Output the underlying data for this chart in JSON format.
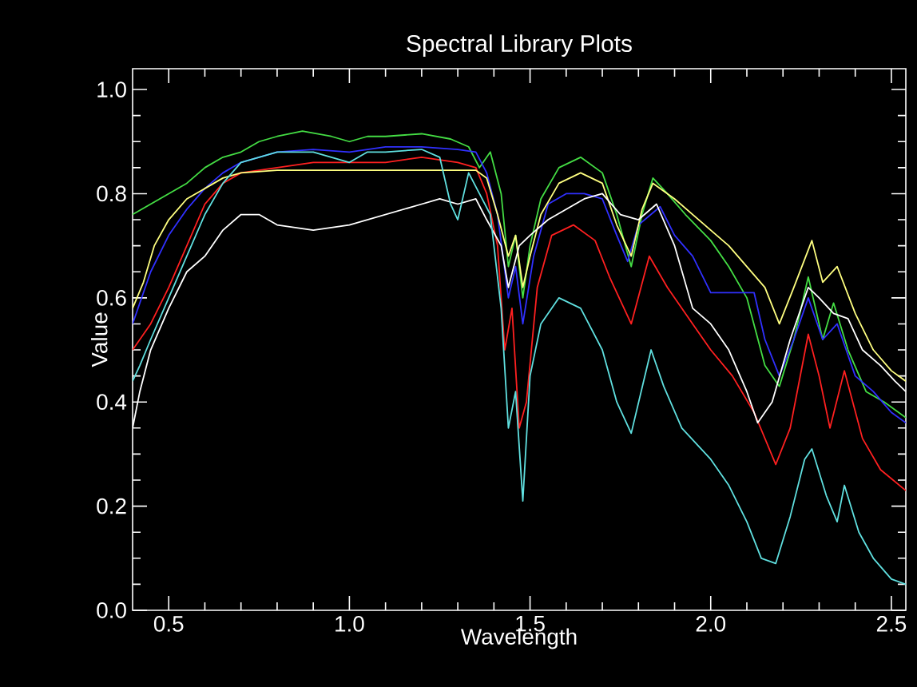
{
  "chart_data": {
    "type": "line",
    "title": "Spectral Library Plots",
    "xlabel": "Wavelength",
    "ylabel": "Value",
    "xlim": [
      0.4,
      2.54
    ],
    "ylim": [
      0,
      1.04
    ],
    "xticks": [
      {
        "value": 0.5,
        "label": "0.5"
      },
      {
        "value": 1.0,
        "label": "1.0"
      },
      {
        "value": 1.5,
        "label": "1.5"
      },
      {
        "value": 2.0,
        "label": "2.0"
      },
      {
        "value": 2.5,
        "label": "2.5"
      }
    ],
    "yticks": [
      {
        "value": 0.0,
        "label": "0.0"
      },
      {
        "value": 0.2,
        "label": "0.2"
      },
      {
        "value": 0.4,
        "label": "0.4"
      },
      {
        "value": 0.6,
        "label": "0.6"
      },
      {
        "value": 0.8,
        "label": "0.8"
      },
      {
        "value": 1.0,
        "label": "1.0"
      }
    ],
    "series": [
      {
        "color": "#44dd44",
        "x": [
          0.4,
          0.45,
          0.5,
          0.55,
          0.6,
          0.65,
          0.7,
          0.75,
          0.8,
          0.87,
          0.95,
          1.0,
          1.05,
          1.1,
          1.2,
          1.28,
          1.33,
          1.36,
          1.39,
          1.42,
          1.44,
          1.46,
          1.48,
          1.5,
          1.53,
          1.58,
          1.64,
          1.7,
          1.74,
          1.78,
          1.81,
          1.84,
          1.88,
          1.93,
          2.0,
          2.05,
          2.1,
          2.15,
          2.19,
          2.23,
          2.27,
          2.31,
          2.34,
          2.38,
          2.43,
          2.48,
          2.54
        ],
        "values": [
          0.76,
          0.78,
          0.8,
          0.82,
          0.85,
          0.87,
          0.88,
          0.9,
          0.91,
          0.92,
          0.91,
          0.9,
          0.91,
          0.91,
          0.915,
          0.905,
          0.89,
          0.85,
          0.88,
          0.8,
          0.66,
          0.72,
          0.6,
          0.7,
          0.79,
          0.85,
          0.87,
          0.84,
          0.76,
          0.66,
          0.76,
          0.83,
          0.8,
          0.76,
          0.71,
          0.66,
          0.6,
          0.47,
          0.43,
          0.52,
          0.64,
          0.52,
          0.59,
          0.5,
          0.42,
          0.4,
          0.37
        ]
      },
      {
        "color": "#3030ff",
        "x": [
          0.4,
          0.45,
          0.5,
          0.55,
          0.6,
          0.65,
          0.7,
          0.8,
          0.9,
          1.0,
          1.1,
          1.2,
          1.3,
          1.35,
          1.38,
          1.41,
          1.44,
          1.46,
          1.48,
          1.51,
          1.55,
          1.6,
          1.65,
          1.7,
          1.74,
          1.77,
          1.8,
          1.86,
          1.9,
          1.95,
          2.0,
          2.06,
          2.12,
          2.15,
          2.19,
          2.23,
          2.27,
          2.31,
          2.35,
          2.4,
          2.45,
          2.5,
          2.54
        ],
        "values": [
          0.55,
          0.65,
          0.72,
          0.77,
          0.81,
          0.84,
          0.86,
          0.88,
          0.885,
          0.88,
          0.89,
          0.89,
          0.885,
          0.88,
          0.84,
          0.76,
          0.6,
          0.66,
          0.55,
          0.68,
          0.78,
          0.8,
          0.8,
          0.79,
          0.72,
          0.67,
          0.74,
          0.775,
          0.72,
          0.68,
          0.61,
          0.61,
          0.61,
          0.52,
          0.45,
          0.52,
          0.6,
          0.52,
          0.55,
          0.45,
          0.42,
          0.38,
          0.36
        ]
      },
      {
        "color": "#ff2020",
        "x": [
          0.4,
          0.45,
          0.5,
          0.55,
          0.6,
          0.65,
          0.7,
          0.8,
          0.9,
          1.0,
          1.1,
          1.2,
          1.3,
          1.35,
          1.38,
          1.41,
          1.43,
          1.45,
          1.47,
          1.49,
          1.52,
          1.56,
          1.62,
          1.68,
          1.72,
          1.78,
          1.83,
          1.88,
          1.95,
          2.0,
          2.06,
          2.12,
          2.18,
          2.22,
          2.27,
          2.3,
          2.33,
          2.37,
          2.42,
          2.47,
          2.54
        ],
        "values": [
          0.5,
          0.55,
          0.62,
          0.7,
          0.78,
          0.82,
          0.84,
          0.85,
          0.86,
          0.86,
          0.86,
          0.87,
          0.86,
          0.85,
          0.8,
          0.7,
          0.5,
          0.58,
          0.35,
          0.4,
          0.62,
          0.72,
          0.74,
          0.71,
          0.64,
          0.55,
          0.68,
          0.62,
          0.55,
          0.5,
          0.45,
          0.38,
          0.28,
          0.35,
          0.53,
          0.45,
          0.35,
          0.46,
          0.33,
          0.27,
          0.23
        ]
      },
      {
        "color": "#ffff80",
        "x": [
          0.4,
          0.43,
          0.46,
          0.5,
          0.55,
          0.6,
          0.65,
          0.7,
          0.8,
          1.0,
          1.2,
          1.35,
          1.38,
          1.41,
          1.44,
          1.46,
          1.48,
          1.5,
          1.53,
          1.58,
          1.64,
          1.7,
          1.74,
          1.78,
          1.81,
          1.84,
          1.9,
          1.95,
          2.0,
          2.05,
          2.1,
          2.15,
          2.19,
          2.23,
          2.28,
          2.31,
          2.35,
          2.4,
          2.45,
          2.5,
          2.54
        ],
        "values": [
          0.58,
          0.63,
          0.7,
          0.75,
          0.79,
          0.81,
          0.83,
          0.84,
          0.845,
          0.845,
          0.845,
          0.845,
          0.83,
          0.76,
          0.68,
          0.72,
          0.62,
          0.68,
          0.76,
          0.82,
          0.84,
          0.82,
          0.74,
          0.68,
          0.77,
          0.82,
          0.79,
          0.76,
          0.73,
          0.7,
          0.66,
          0.62,
          0.55,
          0.62,
          0.71,
          0.63,
          0.66,
          0.57,
          0.5,
          0.46,
          0.44
        ]
      },
      {
        "color": "#ffffff",
        "x": [
          0.4,
          0.42,
          0.45,
          0.5,
          0.55,
          0.6,
          0.65,
          0.7,
          0.75,
          0.8,
          0.9,
          1.0,
          1.1,
          1.2,
          1.25,
          1.3,
          1.35,
          1.38,
          1.42,
          1.44,
          1.47,
          1.5,
          1.55,
          1.6,
          1.65,
          1.7,
          1.75,
          1.8,
          1.85,
          1.9,
          1.95,
          2.0,
          2.05,
          2.1,
          2.13,
          2.17,
          2.22,
          2.27,
          2.3,
          2.34,
          2.38,
          2.42,
          2.47,
          2.51,
          2.54
        ],
        "values": [
          0.35,
          0.42,
          0.5,
          0.58,
          0.65,
          0.68,
          0.73,
          0.76,
          0.76,
          0.74,
          0.73,
          0.74,
          0.76,
          0.78,
          0.79,
          0.78,
          0.79,
          0.75,
          0.7,
          0.62,
          0.7,
          0.72,
          0.75,
          0.77,
          0.79,
          0.8,
          0.76,
          0.75,
          0.78,
          0.7,
          0.58,
          0.55,
          0.5,
          0.42,
          0.36,
          0.4,
          0.52,
          0.62,
          0.6,
          0.57,
          0.56,
          0.5,
          0.47,
          0.44,
          0.42
        ]
      },
      {
        "color": "#60e0e0",
        "x": [
          0.4,
          0.42,
          0.45,
          0.5,
          0.55,
          0.6,
          0.65,
          0.7,
          0.8,
          0.9,
          0.95,
          1.0,
          1.05,
          1.1,
          1.2,
          1.25,
          1.28,
          1.3,
          1.33,
          1.36,
          1.39,
          1.42,
          1.44,
          1.46,
          1.48,
          1.5,
          1.53,
          1.58,
          1.64,
          1.7,
          1.74,
          1.78,
          1.835,
          1.87,
          1.92,
          2.0,
          2.05,
          2.1,
          2.14,
          2.18,
          2.22,
          2.26,
          2.28,
          2.32,
          2.35,
          2.37,
          2.41,
          2.45,
          2.5,
          2.54
        ],
        "values": [
          0.44,
          0.47,
          0.52,
          0.6,
          0.68,
          0.76,
          0.82,
          0.86,
          0.88,
          0.88,
          0.87,
          0.86,
          0.88,
          0.88,
          0.885,
          0.87,
          0.78,
          0.75,
          0.84,
          0.8,
          0.76,
          0.58,
          0.35,
          0.42,
          0.21,
          0.45,
          0.55,
          0.6,
          0.58,
          0.5,
          0.4,
          0.34,
          0.5,
          0.43,
          0.35,
          0.29,
          0.24,
          0.17,
          0.1,
          0.09,
          0.18,
          0.29,
          0.31,
          0.22,
          0.17,
          0.24,
          0.15,
          0.1,
          0.06,
          0.05
        ]
      }
    ]
  }
}
